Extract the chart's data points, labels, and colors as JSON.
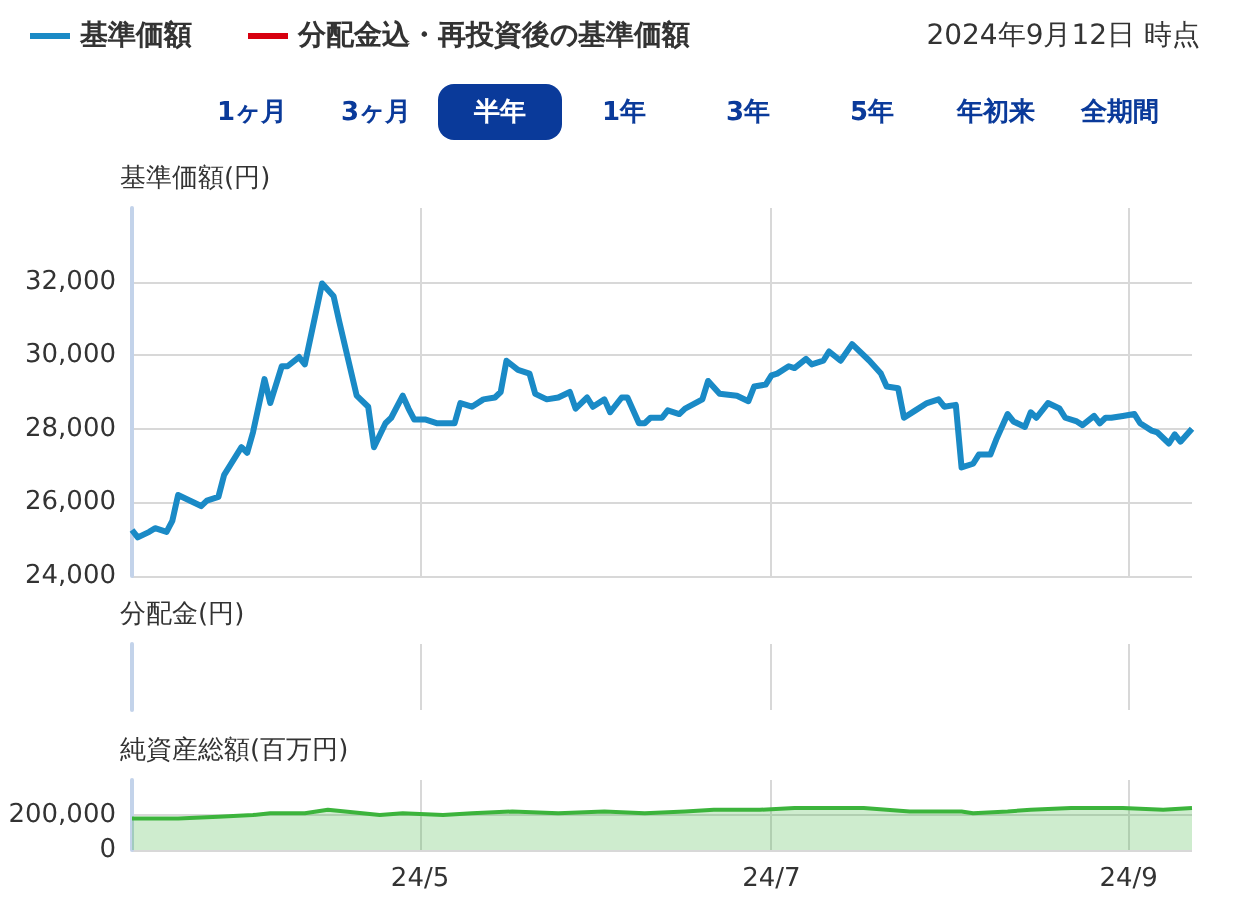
{
  "chart_data": [
    {
      "type": "line",
      "ylabel": "基準価額(円)",
      "subtitle": "2024年9月12日 時点",
      "annotations": [
        "1ヶ月",
        "3ヶ月",
        "半年",
        "1年",
        "3年",
        "5年",
        "年初来",
        "全期間"
      ],
      "legend": "top left",
      "grid": true,
      "tick_labels": "y",
      "xlim": [
        "2024-03-12",
        "2024-09-12"
      ],
      "xticks": [
        {
          "value": "2024-05-01",
          "label": null
        },
        {
          "value": "2024-07-01",
          "label": null
        },
        {
          "value": "2024-09-01",
          "label": null
        }
      ],
      "ylim": [
        24000,
        34000
      ],
      "yticks": [
        {
          "value": 24000,
          "label": "24,000"
        },
        {
          "value": 26000,
          "label": "26,000"
        },
        {
          "value": 28000,
          "label": "28,000"
        },
        {
          "value": 30000,
          "label": "30,000"
        },
        {
          "value": 32000,
          "label": "32,000"
        }
      ],
      "x": [
        "2024-03-12",
        "2024-03-13",
        "2024-03-15",
        "2024-03-16",
        "2024-03-18",
        "2024-03-19",
        "2024-03-20",
        "2024-03-22",
        "2024-03-24",
        "2024-03-25",
        "2024-03-27",
        "2024-03-28",
        "2024-03-29",
        "2024-03-31",
        "2024-04-01",
        "2024-04-02",
        "2024-04-04",
        "2024-04-05",
        "2024-04-07",
        "2024-04-08",
        "2024-04-10",
        "2024-04-11",
        "2024-04-14",
        "2024-04-16",
        "2024-04-17",
        "2024-04-20",
        "2024-04-22",
        "2024-04-23",
        "2024-04-25",
        "2024-04-26",
        "2024-04-28",
        "2024-04-29",
        "2024-04-30",
        "2024-05-02",
        "2024-05-04",
        "2024-05-07",
        "2024-05-08",
        "2024-05-10",
        "2024-05-12",
        "2024-05-14",
        "2024-05-15",
        "2024-05-16",
        "2024-05-18",
        "2024-05-20",
        "2024-05-21",
        "2024-05-23",
        "2024-05-25",
        "2024-05-27",
        "2024-05-28",
        "2024-05-30",
        "2024-05-31",
        "2024-06-02",
        "2024-06-03",
        "2024-06-05",
        "2024-06-06",
        "2024-06-08",
        "2024-06-09",
        "2024-06-10",
        "2024-06-12",
        "2024-06-13",
        "2024-06-15",
        "2024-06-16",
        "2024-06-19",
        "2024-06-20",
        "2024-06-22",
        "2024-06-25",
        "2024-06-27",
        "2024-06-28",
        "2024-06-30",
        "2024-07-01",
        "2024-07-02",
        "2024-07-04",
        "2024-07-05",
        "2024-07-07",
        "2024-07-08",
        "2024-07-10",
        "2024-07-11",
        "2024-07-13",
        "2024-07-15",
        "2024-07-18",
        "2024-07-20",
        "2024-07-21",
        "2024-07-23",
        "2024-07-24",
        "2024-07-26",
        "2024-07-28",
        "2024-07-30",
        "2024-07-31",
        "2024-08-02",
        "2024-08-03",
        "2024-08-05",
        "2024-08-06",
        "2024-08-08",
        "2024-08-09",
        "2024-08-11",
        "2024-08-12",
        "2024-08-14",
        "2024-08-15",
        "2024-08-16",
        "2024-08-18",
        "2024-08-20",
        "2024-08-21",
        "2024-08-23",
        "2024-08-24",
        "2024-08-26",
        "2024-08-27",
        "2024-08-28",
        "2024-08-29",
        "2024-08-31",
        "2024-09-02",
        "2024-09-03",
        "2024-09-05",
        "2024-09-06",
        "2024-09-08",
        "2024-09-09",
        "2024-09-10",
        "2024-09-12"
      ],
      "series": [
        {
          "name": "基準価額",
          "color": "#1a8ac6",
          "values": [
            25250,
            25050,
            25200,
            25300,
            25200,
            25500,
            26200,
            26050,
            25900,
            26050,
            26150,
            26750,
            27000,
            27500,
            27350,
            27900,
            29350,
            28700,
            29700,
            29700,
            29950,
            29750,
            31950,
            31600,
            30900,
            28900,
            28600,
            27500,
            28150,
            28300,
            28900,
            28550,
            28250,
            28250,
            28150,
            28150,
            28700,
            28600,
            28800,
            28850,
            29000,
            29850,
            29600,
            29500,
            28950,
            28800,
            28850,
            29000,
            28550,
            28850,
            28600,
            28800,
            28450,
            28850,
            28850,
            28150,
            28150,
            28300,
            28300,
            28500,
            28400,
            28550,
            28800,
            29300,
            28950,
            28900,
            28750,
            29150,
            29200,
            29450,
            29500,
            29700,
            29650,
            29900,
            29750,
            29850,
            30100,
            29850,
            30300,
            29850,
            29500,
            29150,
            29100,
            28300,
            28500,
            28700,
            28800,
            28600,
            28650,
            26950,
            27050,
            27300,
            27300,
            27700,
            28400,
            28200,
            28050,
            28450,
            28300,
            28700,
            28550,
            28300,
            28200,
            28100,
            28350,
            28150,
            28300,
            28300,
            28350,
            28400,
            28150,
            27950,
            27900,
            27600,
            27850,
            27650,
            28000
          ]
        },
        {
          "name": "分配金込・再投資後の基準価額",
          "color": "#d7000f",
          "values": [
            null,
            null,
            null,
            null,
            null,
            null,
            null,
            null,
            null,
            null,
            null,
            null,
            null,
            null,
            null,
            null,
            null,
            null,
            null,
            null,
            null,
            null,
            null,
            null,
            null,
            null,
            null,
            null,
            null,
            null,
            null,
            null,
            null,
            null,
            null,
            null,
            null,
            null,
            null,
            null,
            null,
            null,
            null,
            null,
            null,
            null,
            null,
            null,
            null,
            null,
            null,
            null,
            null,
            null,
            null,
            null,
            null,
            null,
            null,
            null,
            null,
            null,
            null,
            null,
            null,
            null,
            null,
            null,
            null,
            null,
            null,
            null,
            null,
            null,
            null,
            null,
            null,
            null,
            null,
            null,
            null,
            null,
            null,
            null,
            null,
            null,
            null,
            null,
            null,
            null,
            null,
            null,
            null,
            null,
            null,
            null,
            null,
            null,
            null,
            null,
            null,
            null,
            null,
            null,
            null,
            null,
            null,
            null,
            null,
            null,
            null,
            null,
            null,
            null,
            null,
            null,
            null
          ]
        }
      ]
    },
    {
      "type": "other",
      "ylabel": "分配金(円)"
    },
    {
      "type": "area",
      "ylabel": "純資産総額(百万円)",
      "grid": true,
      "color": "#3cb43c",
      "xlim": [
        "2024-03-12",
        "2024-09-12"
      ],
      "xticks": [
        {
          "value": "2024-05-01",
          "label": "24/5"
        },
        {
          "value": "2024-07-01",
          "label": "24/7"
        },
        {
          "value": "2024-09-01",
          "label": "24/9"
        }
      ],
      "ylim": [
        0,
        400000
      ],
      "yticks": [
        {
          "value": 0,
          "label": "0"
        },
        {
          "value": 200000,
          "label": "200,000"
        }
      ],
      "x": [
        "2024-03-12",
        "2024-03-20",
        "2024-03-27",
        "2024-04-02",
        "2024-04-05",
        "2024-04-11",
        "2024-04-15",
        "2024-04-18",
        "2024-04-24",
        "2024-04-28",
        "2024-05-05",
        "2024-05-10",
        "2024-05-17",
        "2024-05-25",
        "2024-06-02",
        "2024-06-09",
        "2024-06-16",
        "2024-06-21",
        "2024-06-29",
        "2024-07-05",
        "2024-07-12",
        "2024-07-17",
        "2024-07-25",
        "2024-08-03",
        "2024-08-05",
        "2024-08-11",
        "2024-08-15",
        "2024-08-22",
        "2024-08-31",
        "2024-09-07",
        "2024-09-12"
      ],
      "values": [
        180000,
        180000,
        190000,
        200000,
        210000,
        210000,
        230000,
        220000,
        200000,
        210000,
        200000,
        210000,
        220000,
        210000,
        220000,
        210000,
        220000,
        230000,
        230000,
        240000,
        240000,
        240000,
        220000,
        220000,
        210000,
        220000,
        230000,
        240000,
        240000,
        230000,
        240000
      ]
    }
  ]
}
